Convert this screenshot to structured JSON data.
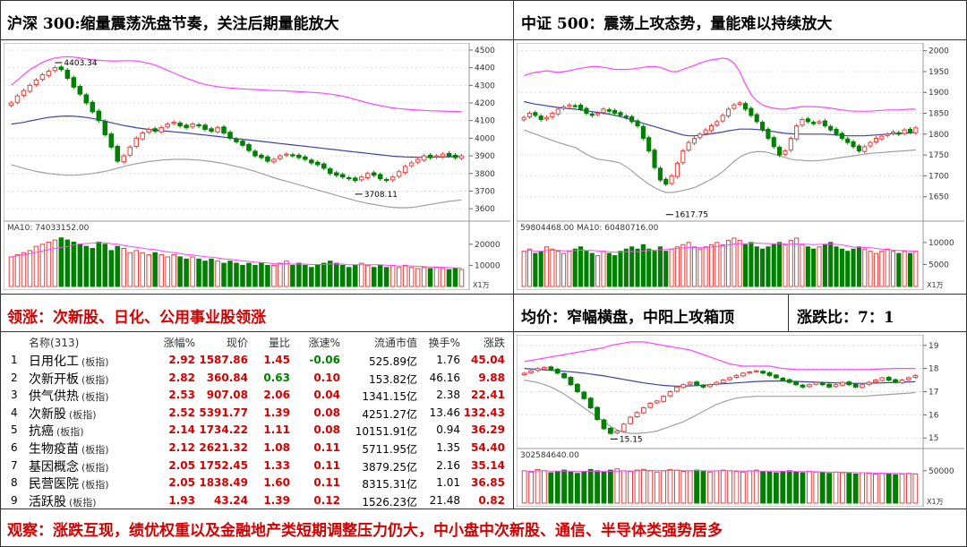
{
  "headers": {
    "top_left": "沪深 300:缩量震荡洗盘节奏，关注后期量能放大",
    "top_right": "中证 500：震荡上攻态势，量能难以持续放大",
    "mid_left": "领涨：次新股、日化、公用事业股领涨",
    "mid_right": "均价：窄幅横盘，中阳上攻箱顶",
    "mid_ratio": "涨跌比：7：1",
    "bottom": "观察：涨跌互现，绩优权重以及金融地产类短期调整压力仍大，中小盘中次新股、通信、半导体类强势居多"
  },
  "colors": {
    "up": "#e8403c",
    "down": "#008000",
    "upper_band": "#ff44ff",
    "ma": "#4040a0",
    "lower_band": "#a0a0a0",
    "text_red": "#d40000"
  },
  "chart_data": [
    {
      "type": "candlestick",
      "title": "沪深 300",
      "ylim": [
        3550,
        4520
      ],
      "yticks": [
        3600,
        3700,
        3800,
        3900,
        4000,
        4100,
        4200,
        4300,
        4400,
        4500
      ],
      "annotations": [
        {
          "text": "4403.34",
          "value": 4403.34
        },
        {
          "text": "3708.11",
          "value": 3708.11
        }
      ],
      "volume_label": "MA10: 74033152.00",
      "volume_ticks": [
        "10000",
        "20000"
      ],
      "volume_ylim": [
        0,
        25000
      ],
      "x_unit_label": "X1万",
      "closes": [
        4200,
        4240,
        4270,
        4300,
        4330,
        4360,
        4380,
        4400,
        4390,
        4340,
        4290,
        4250,
        4200,
        4150,
        4100,
        4020,
        3950,
        3870,
        3900,
        3950,
        4000,
        4030,
        4050,
        4040,
        4060,
        4080,
        4090,
        4070,
        4060,
        4080,
        4070,
        4050,
        4040,
        4060,
        4030,
        4000,
        3980,
        3960,
        3930,
        3900,
        3890,
        3870,
        3880,
        3900,
        3910,
        3900,
        3890,
        3880,
        3860,
        3850,
        3830,
        3800,
        3790,
        3780,
        3770,
        3760,
        3780,
        3800,
        3790,
        3770,
        3760,
        3780,
        3810,
        3840,
        3860,
        3880,
        3900,
        3890,
        3900,
        3910,
        3900,
        3890,
        3900
      ],
      "upper": [
        4300,
        4330,
        4360,
        4390,
        4410,
        4430,
        4445,
        4455,
        4460,
        4462,
        4460,
        4456,
        4450,
        4446,
        4442,
        4440,
        4438,
        4438,
        4440,
        4440,
        4438,
        4432,
        4425,
        4415,
        4400,
        4385,
        4370,
        4355,
        4340,
        4328,
        4315,
        4305,
        4298,
        4292,
        4288,
        4285,
        4282,
        4280,
        4278,
        4276,
        4274,
        4272,
        4270,
        4270,
        4268,
        4266,
        4264,
        4262,
        4260,
        4258,
        4255,
        4250,
        4245,
        4238,
        4230,
        4220,
        4210,
        4200,
        4192,
        4185,
        4178,
        4172,
        4168,
        4165,
        4162,
        4160,
        4158,
        4156,
        4155,
        4154,
        4153,
        4152,
        4150
      ],
      "ma": [
        4080,
        4085,
        4090,
        4098,
        4105,
        4112,
        4118,
        4122,
        4125,
        4126,
        4125,
        4122,
        4118,
        4112,
        4105,
        4097,
        4088,
        4080,
        4072,
        4066,
        4060,
        4055,
        4050,
        4046,
        4042,
        4040,
        4036,
        4033,
        4030,
        4026,
        4022,
        4018,
        4014,
        4010,
        4006,
        4002,
        3998,
        3994,
        3990,
        3986,
        3982,
        3978,
        3974,
        3970,
        3966,
        3962,
        3958,
        3954,
        3950,
        3946,
        3942,
        3938,
        3934,
        3930,
        3926,
        3922,
        3918,
        3914,
        3910,
        3906,
        3902,
        3898,
        3896,
        3894,
        3893,
        3892,
        3892,
        3892,
        3893,
        3894,
        3895,
        3896,
        3897
      ],
      "lower": [
        3850,
        3840,
        3830,
        3820,
        3812,
        3806,
        3800,
        3796,
        3792,
        3790,
        3790,
        3792,
        3796,
        3800,
        3806,
        3812,
        3820,
        3830,
        3840,
        3848,
        3855,
        3862,
        3868,
        3872,
        3876,
        3878,
        3880,
        3880,
        3880,
        3878,
        3876,
        3872,
        3868,
        3862,
        3856,
        3848,
        3840,
        3832,
        3822,
        3812,
        3800,
        3788,
        3776,
        3766,
        3756,
        3746,
        3736,
        3726,
        3716,
        3706,
        3696,
        3686,
        3676,
        3666,
        3656,
        3646,
        3638,
        3630,
        3624,
        3618,
        3612,
        3608,
        3606,
        3606,
        3608,
        3612,
        3618,
        3624,
        3630,
        3636,
        3642,
        3646,
        3650
      ],
      "volumes": [
        14000,
        15000,
        16000,
        17000,
        19000,
        20000,
        21000,
        22000,
        23000,
        22000,
        21000,
        20000,
        19000,
        18000,
        21000,
        20000,
        17000,
        19000,
        18000,
        16000,
        17000,
        16000,
        15000,
        16000,
        15000,
        14000,
        15000,
        14000,
        13000,
        14000,
        13000,
        12000,
        13000,
        12000,
        11000,
        12000,
        11000,
        10000,
        11000,
        10000,
        11000,
        10000,
        10000,
        11000,
        12000,
        10000,
        11000,
        10000,
        9000,
        10000,
        11000,
        12000,
        11000,
        10000,
        9000,
        10000,
        11000,
        10000,
        9000,
        10000,
        9000,
        10000,
        9000,
        10000,
        9000,
        8500,
        9000,
        8500,
        9000,
        8500,
        8000,
        8500,
        8000
      ]
    },
    {
      "type": "candlestick",
      "title": "中证 500",
      "ylim": [
        1600,
        2010
      ],
      "yticks": [
        1650,
        1700,
        1750,
        1800,
        1850,
        1900,
        1950,
        2000
      ],
      "annotations": [
        {
          "text": "1617.75",
          "value": 1617.75
        }
      ],
      "volume_label": "59804468.00  MA10: 60480716.00",
      "volume_ticks": [
        "5000",
        "10000"
      ],
      "volume_ylim": [
        0,
        12000
      ],
      "x_unit_label": "X1万",
      "closes": [
        1840,
        1850,
        1845,
        1835,
        1840,
        1850,
        1860,
        1865,
        1870,
        1868,
        1860,
        1850,
        1845,
        1850,
        1860,
        1855,
        1850,
        1845,
        1840,
        1830,
        1820,
        1790,
        1760,
        1720,
        1690,
        1680,
        1700,
        1730,
        1760,
        1780,
        1790,
        1800,
        1810,
        1820,
        1830,
        1845,
        1860,
        1870,
        1875,
        1860,
        1845,
        1830,
        1810,
        1790,
        1770,
        1750,
        1760,
        1790,
        1820,
        1835,
        1830,
        1825,
        1830,
        1820,
        1810,
        1800,
        1790,
        1780,
        1770,
        1760,
        1770,
        1780,
        1790,
        1795,
        1800,
        1805,
        1800,
        1810,
        1805,
        1815
      ],
      "upper": [
        1940,
        1945,
        1948,
        1950,
        1952,
        1950,
        1948,
        1950,
        1952,
        1955,
        1958,
        1960,
        1962,
        1962,
        1960,
        1958,
        1955,
        1955,
        1955,
        1956,
        1958,
        1960,
        1962,
        1962,
        1960,
        1955,
        1950,
        1950,
        1955,
        1960,
        1965,
        1970,
        1975,
        1978,
        1980,
        1982,
        1980,
        1970,
        1950,
        1920,
        1895,
        1880,
        1870,
        1865,
        1862,
        1860,
        1860,
        1862,
        1864,
        1866,
        1866,
        1866,
        1865,
        1864,
        1862,
        1860,
        1858,
        1856,
        1855,
        1855,
        1855,
        1855,
        1856,
        1857,
        1858,
        1858,
        1858,
        1859,
        1860,
        1860
      ],
      "ma": [
        1878,
        1875,
        1872,
        1870,
        1868,
        1866,
        1864,
        1862,
        1861,
        1860,
        1858,
        1856,
        1854,
        1852,
        1850,
        1848,
        1845,
        1842,
        1838,
        1834,
        1830,
        1826,
        1822,
        1818,
        1814,
        1810,
        1806,
        1802,
        1798,
        1796,
        1796,
        1797,
        1799,
        1801,
        1803,
        1805,
        1808,
        1810,
        1812,
        1812,
        1812,
        1811,
        1810,
        1808,
        1806,
        1804,
        1802,
        1801,
        1800,
        1800,
        1800,
        1800,
        1800,
        1800,
        1799,
        1798,
        1797,
        1796,
        1796,
        1796,
        1796,
        1797,
        1798,
        1799,
        1800,
        1801,
        1801,
        1802,
        1803,
        1804
      ],
      "lower": [
        1810,
        1805,
        1800,
        1795,
        1790,
        1785,
        1780,
        1776,
        1772,
        1768,
        1760,
        1752,
        1745,
        1740,
        1738,
        1736,
        1734,
        1730,
        1722,
        1712,
        1700,
        1690,
        1680,
        1672,
        1665,
        1660,
        1660,
        1662,
        1665,
        1668,
        1672,
        1678,
        1685,
        1692,
        1700,
        1710,
        1722,
        1735,
        1745,
        1752,
        1756,
        1758,
        1758,
        1756,
        1752,
        1748,
        1744,
        1740,
        1738,
        1737,
        1736,
        1736,
        1737,
        1738,
        1740,
        1742,
        1744,
        1746,
        1748,
        1750,
        1752,
        1754,
        1755,
        1756,
        1757,
        1758,
        1759,
        1760,
        1761,
        1762
      ],
      "volumes": [
        8000,
        8500,
        7500,
        8000,
        9000,
        8500,
        8000,
        7500,
        8000,
        8500,
        9000,
        8000,
        7500,
        7000,
        8000,
        7500,
        7000,
        8000,
        8500,
        9000,
        8500,
        9500,
        8500,
        8000,
        9000,
        8000,
        8500,
        9000,
        9500,
        10000,
        9000,
        8500,
        9000,
        9500,
        10000,
        9500,
        10500,
        11000,
        10500,
        9500,
        10000,
        9000,
        8500,
        9000,
        9500,
        10000,
        9500,
        10500,
        11000,
        9500,
        9000,
        8500,
        9000,
        9500,
        10000,
        9000,
        8500,
        8000,
        8500,
        9000,
        8500,
        8000,
        7500,
        8000,
        8500,
        8000,
        7500,
        8000,
        7500,
        8000
      ]
    },
    {
      "type": "candlestick",
      "title": "均价",
      "ylim": [
        14.7,
        19.3
      ],
      "yticks": [
        15.0,
        16.0,
        17.0,
        18.0,
        19.0
      ],
      "annotations": [
        {
          "text": "15.15",
          "value": 15.15
        }
      ],
      "volume_label": "302584640.00",
      "volume_ticks": [
        "50000"
      ],
      "volume_ylim": [
        0,
        65000
      ],
      "x_unit_label": "X1万",
      "closes": [
        17.8,
        17.9,
        18.0,
        18.05,
        17.95,
        17.8,
        17.6,
        17.3,
        17.0,
        16.7,
        16.3,
        15.8,
        15.4,
        15.2,
        15.3,
        15.6,
        15.9,
        16.1,
        16.3,
        16.5,
        16.6,
        16.8,
        17.0,
        17.2,
        17.3,
        17.4,
        17.3,
        17.2,
        17.3,
        17.4,
        17.5,
        17.6,
        17.7,
        17.8,
        17.85,
        17.9,
        17.8,
        17.7,
        17.6,
        17.5,
        17.4,
        17.3,
        17.2,
        17.3,
        17.4,
        17.3,
        17.2,
        17.3,
        17.4,
        17.3,
        17.2,
        17.3,
        17.4,
        17.5,
        17.6,
        17.5,
        17.4,
        17.5,
        17.6,
        17.7
      ],
      "upper": [
        18.3,
        18.35,
        18.4,
        18.45,
        18.5,
        18.55,
        18.6,
        18.65,
        18.7,
        18.75,
        18.8,
        18.85,
        18.9,
        19.0,
        19.05,
        19.1,
        19.15,
        19.15,
        19.15,
        19.1,
        19.05,
        19.0,
        18.95,
        18.9,
        18.85,
        18.8,
        18.7,
        18.6,
        18.5,
        18.4,
        18.3,
        18.2,
        18.15,
        18.1,
        18.1,
        18.1,
        18.1,
        18.1,
        18.05,
        18.0,
        17.98,
        17.96,
        17.95,
        17.95,
        17.95,
        17.95,
        17.95,
        17.95,
        17.95,
        17.95,
        17.95,
        17.95,
        17.96,
        17.97,
        17.98,
        17.99,
        18.0,
        18.0,
        18.0,
        18.0
      ],
      "ma": [
        18.0,
        17.98,
        17.96,
        17.94,
        17.92,
        17.9,
        17.88,
        17.86,
        17.83,
        17.8,
        17.76,
        17.72,
        17.68,
        17.63,
        17.58,
        17.53,
        17.48,
        17.43,
        17.38,
        17.34,
        17.3,
        17.27,
        17.25,
        17.24,
        17.24,
        17.25,
        17.26,
        17.28,
        17.3,
        17.32,
        17.34,
        17.36,
        17.38,
        17.4,
        17.42,
        17.44,
        17.45,
        17.46,
        17.46,
        17.46,
        17.45,
        17.44,
        17.43,
        17.42,
        17.41,
        17.4,
        17.39,
        17.38,
        17.37,
        17.36,
        17.36,
        17.36,
        17.36,
        17.37,
        17.38,
        17.39,
        17.4,
        17.41,
        17.42,
        17.43
      ],
      "lower": [
        17.5,
        17.45,
        17.4,
        17.3,
        17.2,
        17.05,
        16.9,
        16.7,
        16.5,
        16.3,
        16.1,
        15.9,
        15.7,
        15.5,
        15.35,
        15.25,
        15.2,
        15.2,
        15.22,
        15.25,
        15.3,
        15.4,
        15.5,
        15.6,
        15.7,
        15.85,
        16.0,
        16.15,
        16.3,
        16.45,
        16.55,
        16.65,
        16.72,
        16.76,
        16.78,
        16.8,
        16.8,
        16.8,
        16.8,
        16.8,
        16.8,
        16.8,
        16.8,
        16.8,
        16.8,
        16.8,
        16.8,
        16.8,
        16.8,
        16.8,
        16.8,
        16.8,
        16.82,
        16.84,
        16.86,
        16.88,
        16.9,
        16.92,
        16.94,
        16.96
      ],
      "volumes": [
        50000,
        48000,
        52000,
        50000,
        47000,
        49000,
        51000,
        48000,
        46000,
        49000,
        52000,
        50000,
        48000,
        51000,
        53000,
        50000,
        49000,
        51000,
        52000,
        50000,
        48000,
        50000,
        52000,
        51000,
        49000,
        50000,
        51000,
        49000,
        48000,
        50000,
        51000,
        50000,
        49000,
        48000,
        50000,
        51000,
        49000,
        48000,
        47000,
        49000,
        50000,
        48000,
        47000,
        49000,
        48000,
        47000,
        46000,
        48000,
        47000,
        46000,
        45000,
        47000,
        46000,
        45000,
        46000,
        45000,
        44000,
        45000,
        46000,
        45000
      ]
    }
  ],
  "table": {
    "headers": {
      "name": "名称(313)",
      "change": "涨幅%",
      "price": "现价",
      "vol_ratio": "量比",
      "speed": "涨速%",
      "cap": "流通市值",
      "turnover": "换手%",
      "amount": "涨跌"
    },
    "rows": [
      {
        "idx": "1",
        "name": "日用化工",
        "tag": "(板指)",
        "change": "2.92",
        "price": "1587.86",
        "vol_ratio": "1.45",
        "speed": "-0.06",
        "cap": "525.89亿",
        "turnover": "1.76",
        "amount": "45.04"
      },
      {
        "idx": "2",
        "name": "次新开板",
        "tag": "(板指)",
        "change": "2.82",
        "price": "360.84",
        "vol_ratio": "0.63",
        "speed": "0.10",
        "cap": "153.82亿",
        "turnover": "46.16",
        "amount": "9.88"
      },
      {
        "idx": "3",
        "name": "供气供热",
        "tag": "(板指)",
        "change": "2.53",
        "price": "907.08",
        "vol_ratio": "2.06",
        "speed": "0.04",
        "cap": "1341.15亿",
        "turnover": "2.38",
        "amount": "22.41"
      },
      {
        "idx": "4",
        "name": "次新股",
        "tag": "(板指)",
        "change": "2.52",
        "price": "5391.77",
        "vol_ratio": "1.39",
        "speed": "0.08",
        "cap": "4251.27亿",
        "turnover": "13.46",
        "amount": "132.43"
      },
      {
        "idx": "5",
        "name": "抗癌",
        "tag": "(板指)",
        "change": "2.14",
        "price": "1734.22",
        "vol_ratio": "1.11",
        "speed": "0.08",
        "cap": "10151.91亿",
        "turnover": "0.94",
        "amount": "36.29"
      },
      {
        "idx": "6",
        "name": "生物疫苗",
        "tag": "(板指)",
        "change": "2.12",
        "price": "2621.32",
        "vol_ratio": "1.08",
        "speed": "0.11",
        "cap": "5711.95亿",
        "turnover": "1.35",
        "amount": "54.40"
      },
      {
        "idx": "7",
        "name": "基因概念",
        "tag": "(板指)",
        "change": "2.05",
        "price": "1752.45",
        "vol_ratio": "1.33",
        "speed": "0.11",
        "cap": "3879.25亿",
        "turnover": "2.16",
        "amount": "35.14"
      },
      {
        "idx": "8",
        "name": "民营医院",
        "tag": "(板指)",
        "change": "2.05",
        "price": "1838.49",
        "vol_ratio": "1.60",
        "speed": "0.11",
        "cap": "8315.31亿",
        "turnover": "1.01",
        "amount": "36.85"
      },
      {
        "idx": "9",
        "name": "活跃股",
        "tag": "(板指)",
        "change": "1.93",
        "price": "43.24",
        "vol_ratio": "1.39",
        "speed": "0.12",
        "cap": "1526.23亿",
        "turnover": "21.48",
        "amount": "0.82"
      }
    ]
  }
}
